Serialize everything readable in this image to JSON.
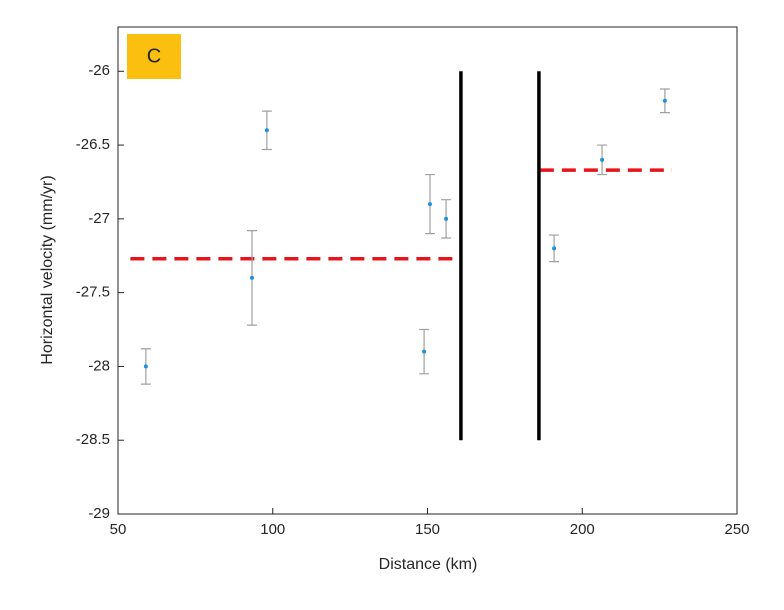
{
  "chart_data": {
    "type": "scatter",
    "panel_label": "C",
    "xlabel": "Distance (km)",
    "ylabel": "Horizontal velocity (mm/yr)",
    "x": [
      59,
      93.3,
      98.1,
      148.9,
      150.8,
      156,
      190.9,
      206.4,
      226.7
    ],
    "series": [
      {
        "color": "#1f8fe0",
        "error_color": "#a0a0a0",
        "values": [
          -28.0,
          -27.4,
          -26.4,
          -27.9,
          -26.9,
          -27.0,
          -27.2,
          -26.6,
          -26.2
        ],
        "errors": [
          0.12,
          0.32,
          0.13,
          0.15,
          0.2,
          0.13,
          0.09,
          0.1,
          0.08
        ]
      }
    ],
    "lines": [
      {
        "x": [
          54,
          160.8
        ],
        "y": [
          -27.27,
          -27.27
        ],
        "color": "#e8141c",
        "dashed": true
      },
      {
        "x": [
          186.3,
          229
        ],
        "y": [
          -26.67,
          -26.67
        ],
        "color": "#e8141c",
        "dashed": true
      },
      {
        "x": [
          160.8,
          160.8
        ],
        "y": [
          -26,
          -28.5
        ],
        "color": "#000000",
        "dashed": false
      },
      {
        "x": [
          186,
          186
        ],
        "y": [
          -26,
          -28.5
        ],
        "color": "#000000",
        "dashed": false
      }
    ],
    "xlim": [
      50,
      250
    ],
    "ylim": [
      -29,
      -25.7
    ],
    "xticks": [
      50,
      100,
      150,
      200,
      250
    ],
    "yticks": [
      -26,
      -26.5,
      -27,
      -27.5,
      -28,
      -28.5,
      -29
    ]
  }
}
